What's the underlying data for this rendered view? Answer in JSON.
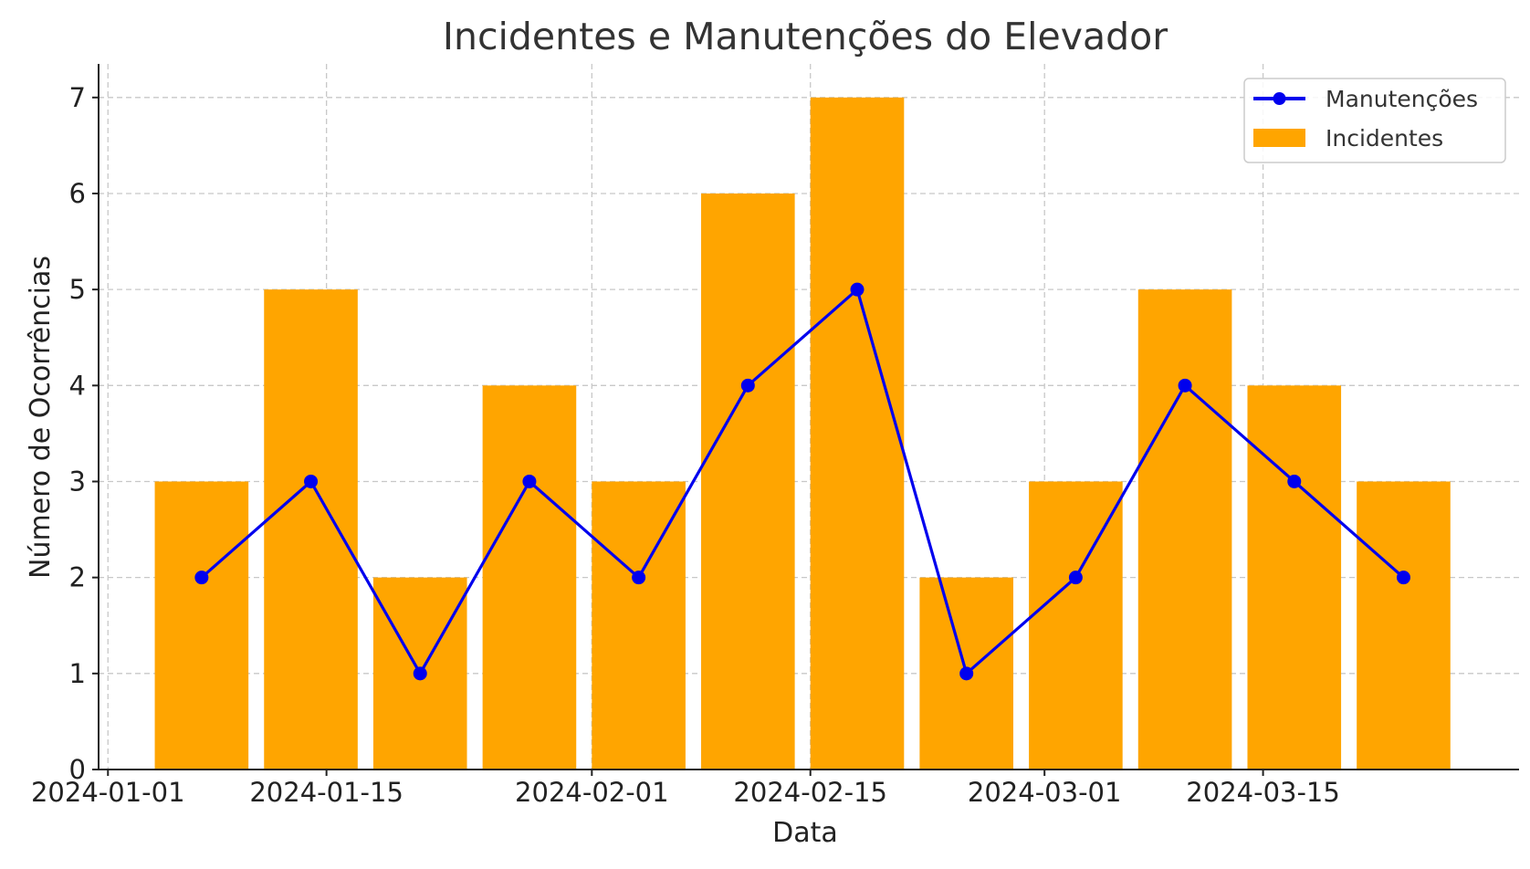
{
  "chart_data": {
    "type": "bar+line",
    "title": "Incidentes e Manutenções do Elevador",
    "xlabel": "Data",
    "ylabel": "Número de Ocorrências",
    "x_axis_type": "date",
    "xlim": [
      "2024-01-01",
      "2024-03-31"
    ],
    "x_ticks": [
      "2024-01-01",
      "2024-01-15",
      "2024-02-01",
      "2024-02-15",
      "2024-03-01",
      "2024-03-15"
    ],
    "ylim": [
      0,
      7.35
    ],
    "y_ticks": [
      0,
      1,
      2,
      3,
      4,
      5,
      6,
      7
    ],
    "grid": true,
    "legend_position": "top-right",
    "dates": [
      "2024-01-07",
      "2024-01-14",
      "2024-01-21",
      "2024-01-28",
      "2024-02-04",
      "2024-02-11",
      "2024-02-18",
      "2024-02-25",
      "2024-03-03",
      "2024-03-10",
      "2024-03-17",
      "2024-03-24"
    ],
    "series": [
      {
        "name": "Incidentes",
        "type": "bar",
        "color": "#FFA500",
        "values": [
          3,
          5,
          2,
          4,
          3,
          6,
          7,
          2,
          3,
          5,
          4,
          3
        ]
      },
      {
        "name": "Manutenções",
        "type": "line",
        "marker": "circle",
        "color": "#0000EE",
        "values": [
          2,
          3,
          1,
          3,
          2,
          4,
          5,
          1,
          2,
          4,
          3,
          2
        ]
      }
    ]
  }
}
